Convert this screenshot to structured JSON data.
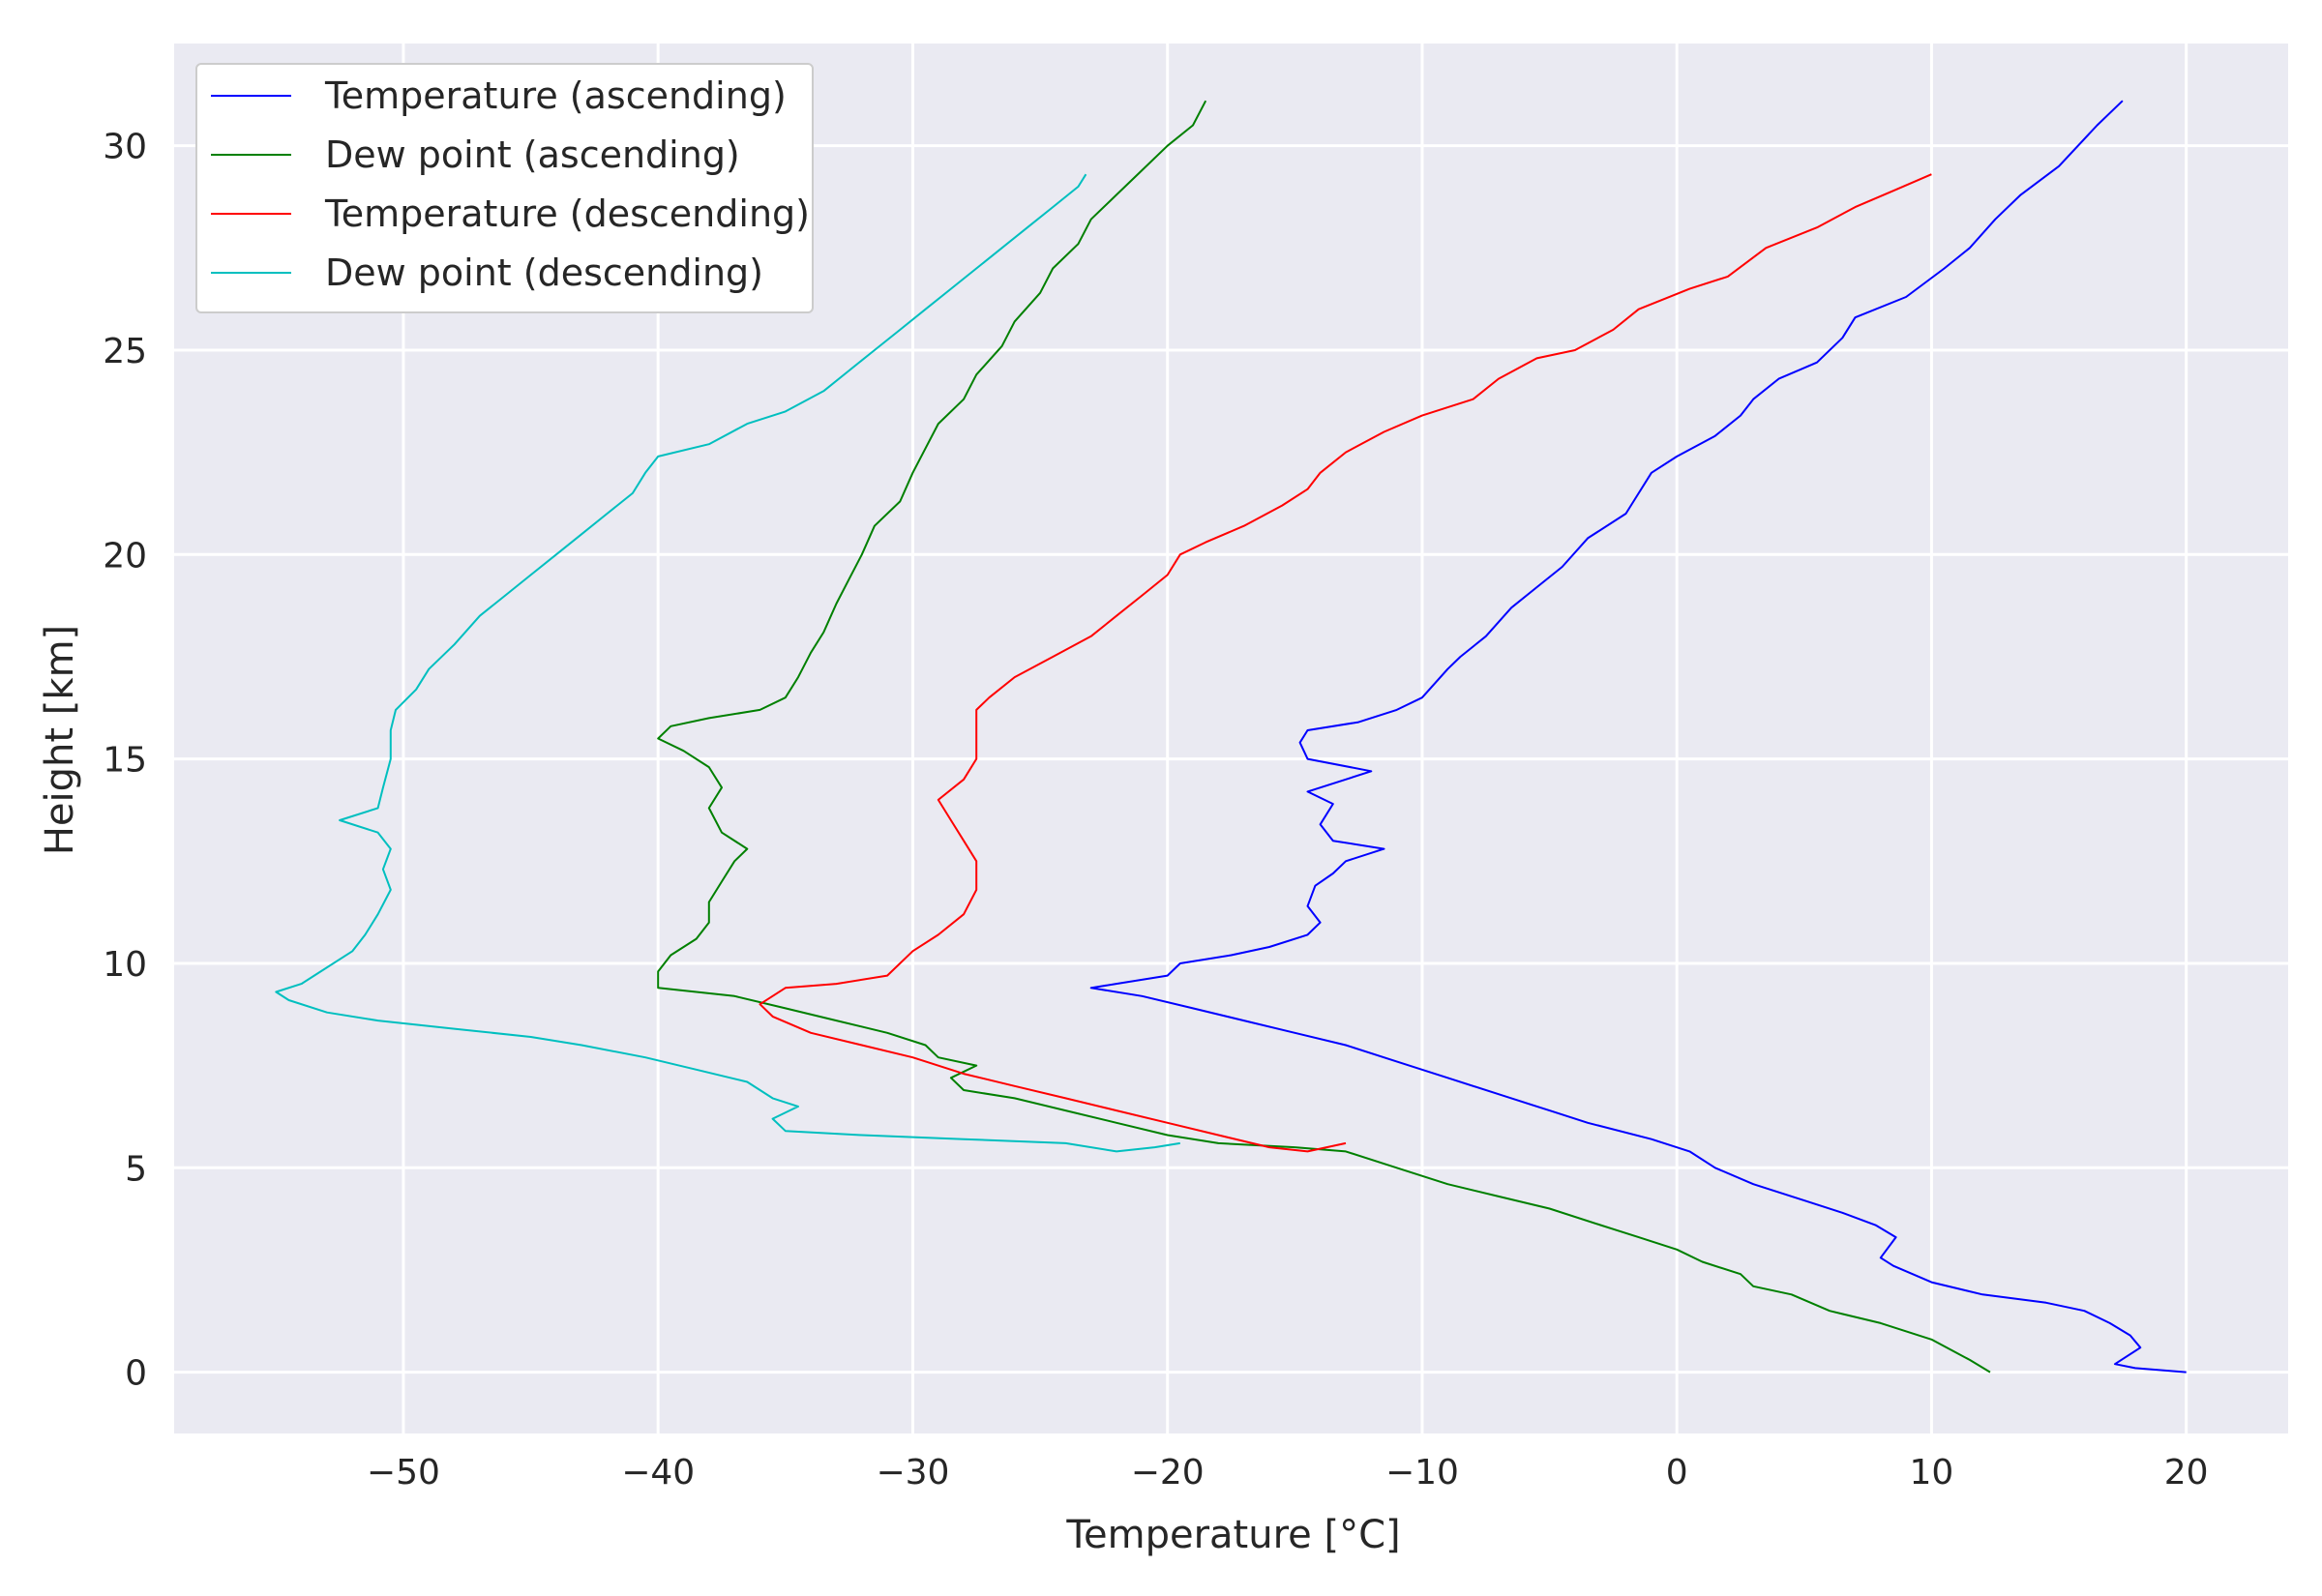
{
  "chart_data": {
    "type": "line",
    "xlabel": "Temperature [°C]",
    "ylabel": "Height [km]",
    "xlim": [
      -59,
      24
    ],
    "ylim": [
      -1.5,
      32.5
    ],
    "xticks": [
      -50,
      -40,
      -30,
      -20,
      -10,
      0,
      10,
      20
    ],
    "xtick_labels": [
      "−50",
      "−40",
      "−30",
      "−20",
      "−10",
      "0",
      "10",
      "20"
    ],
    "yticks": [
      0,
      5,
      10,
      15,
      20,
      25,
      30
    ],
    "ytick_labels": [
      "0",
      "5",
      "10",
      "15",
      "20",
      "25",
      "30"
    ],
    "grid": true,
    "legend_position": "upper-left",
    "background": "#eaeaf2",
    "series": [
      {
        "name": "Temperature (ascending)",
        "color": "#0000ff",
        "points": [
          [
            20.0,
            0.0
          ],
          [
            18.0,
            0.1
          ],
          [
            17.2,
            0.2
          ],
          [
            18.2,
            0.6
          ],
          [
            17.8,
            0.9
          ],
          [
            17.0,
            1.2
          ],
          [
            16.0,
            1.5
          ],
          [
            14.5,
            1.7
          ],
          [
            12.0,
            1.9
          ],
          [
            10.0,
            2.2
          ],
          [
            8.5,
            2.6
          ],
          [
            8.0,
            2.8
          ],
          [
            8.6,
            3.3
          ],
          [
            7.8,
            3.6
          ],
          [
            6.5,
            3.9
          ],
          [
            5.0,
            4.2
          ],
          [
            3.0,
            4.6
          ],
          [
            1.5,
            5.0
          ],
          [
            0.5,
            5.4
          ],
          [
            -1.0,
            5.7
          ],
          [
            -3.5,
            6.1
          ],
          [
            -5.0,
            6.4
          ],
          [
            -7.0,
            6.8
          ],
          [
            -9.0,
            7.2
          ],
          [
            -11.0,
            7.6
          ],
          [
            -13.0,
            8.0
          ],
          [
            -15.0,
            8.3
          ],
          [
            -17.0,
            8.6
          ],
          [
            -19.0,
            8.9
          ],
          [
            -21.0,
            9.2
          ],
          [
            -23.0,
            9.4
          ],
          [
            -20.0,
            9.7
          ],
          [
            -19.5,
            10.0
          ],
          [
            -17.5,
            10.2
          ],
          [
            -16.0,
            10.4
          ],
          [
            -14.5,
            10.7
          ],
          [
            -14.0,
            11.0
          ],
          [
            -14.5,
            11.4
          ],
          [
            -14.2,
            11.9
          ],
          [
            -13.5,
            12.2
          ],
          [
            -13.0,
            12.5
          ],
          [
            -11.5,
            12.8
          ],
          [
            -13.5,
            13.0
          ],
          [
            -14.0,
            13.4
          ],
          [
            -13.5,
            13.9
          ],
          [
            -14.5,
            14.2
          ],
          [
            -13.0,
            14.5
          ],
          [
            -12.0,
            14.7
          ],
          [
            -14.5,
            15.0
          ],
          [
            -14.8,
            15.4
          ],
          [
            -14.5,
            15.7
          ],
          [
            -12.5,
            15.9
          ],
          [
            -11.0,
            16.2
          ],
          [
            -10.0,
            16.5
          ],
          [
            -9.0,
            17.2
          ],
          [
            -8.5,
            17.5
          ],
          [
            -7.5,
            18.0
          ],
          [
            -6.5,
            18.7
          ],
          [
            -5.5,
            19.2
          ],
          [
            -4.5,
            19.7
          ],
          [
            -3.5,
            20.4
          ],
          [
            -2.0,
            21.0
          ],
          [
            -1.5,
            21.5
          ],
          [
            -1.0,
            22.0
          ],
          [
            0.0,
            22.4
          ],
          [
            1.5,
            22.9
          ],
          [
            2.5,
            23.4
          ],
          [
            3.0,
            23.8
          ],
          [
            4.0,
            24.3
          ],
          [
            5.5,
            24.7
          ],
          [
            6.5,
            25.3
          ],
          [
            7.0,
            25.8
          ],
          [
            9.0,
            26.3
          ],
          [
            10.5,
            27.0
          ],
          [
            11.5,
            27.5
          ],
          [
            12.5,
            28.2
          ],
          [
            13.5,
            28.8
          ],
          [
            15.0,
            29.5
          ],
          [
            16.5,
            30.5
          ],
          [
            17.5,
            31.1
          ]
        ]
      },
      {
        "name": "Dew point (ascending)",
        "color": "#008000",
        "points": [
          [
            12.3,
            0.0
          ],
          [
            11.5,
            0.3
          ],
          [
            10.0,
            0.8
          ],
          [
            8.0,
            1.2
          ],
          [
            6.0,
            1.5
          ],
          [
            4.5,
            1.9
          ],
          [
            3.0,
            2.1
          ],
          [
            2.5,
            2.4
          ],
          [
            1.0,
            2.7
          ],
          [
            0.0,
            3.0
          ],
          [
            -1.5,
            3.3
          ],
          [
            -3.0,
            3.6
          ],
          [
            -5.0,
            4.0
          ],
          [
            -7.0,
            4.3
          ],
          [
            -9.0,
            4.6
          ],
          [
            -11.0,
            5.0
          ],
          [
            -13.0,
            5.4
          ],
          [
            -15.0,
            5.5
          ],
          [
            -18.0,
            5.6
          ],
          [
            -20.0,
            5.8
          ],
          [
            -22.0,
            6.1
          ],
          [
            -24.0,
            6.4
          ],
          [
            -26.0,
            6.7
          ],
          [
            -28.0,
            6.9
          ],
          [
            -28.5,
            7.2
          ],
          [
            -27.5,
            7.5
          ],
          [
            -29.0,
            7.7
          ],
          [
            -29.5,
            8.0
          ],
          [
            -31.0,
            8.3
          ],
          [
            -33.0,
            8.6
          ],
          [
            -35.0,
            8.9
          ],
          [
            -37.0,
            9.2
          ],
          [
            -40.0,
            9.4
          ],
          [
            -40.0,
            9.8
          ],
          [
            -39.5,
            10.2
          ],
          [
            -38.5,
            10.6
          ],
          [
            -38.0,
            11.0
          ],
          [
            -38.0,
            11.5
          ],
          [
            -37.5,
            12.0
          ],
          [
            -37.0,
            12.5
          ],
          [
            -36.5,
            12.8
          ],
          [
            -37.5,
            13.2
          ],
          [
            -38.0,
            13.8
          ],
          [
            -37.5,
            14.3
          ],
          [
            -38.0,
            14.8
          ],
          [
            -39.0,
            15.2
          ],
          [
            -40.0,
            15.5
          ],
          [
            -39.5,
            15.8
          ],
          [
            -38.0,
            16.0
          ],
          [
            -36.0,
            16.2
          ],
          [
            -35.0,
            16.5
          ],
          [
            -34.5,
            17.0
          ],
          [
            -34.0,
            17.6
          ],
          [
            -33.5,
            18.1
          ],
          [
            -33.0,
            18.8
          ],
          [
            -32.5,
            19.4
          ],
          [
            -32.0,
            20.0
          ],
          [
            -31.5,
            20.7
          ],
          [
            -30.5,
            21.3
          ],
          [
            -30.0,
            22.0
          ],
          [
            -29.5,
            22.6
          ],
          [
            -29.0,
            23.2
          ],
          [
            -28.0,
            23.8
          ],
          [
            -27.5,
            24.4
          ],
          [
            -26.5,
            25.1
          ],
          [
            -26.0,
            25.7
          ],
          [
            -25.0,
            26.4
          ],
          [
            -24.5,
            27.0
          ],
          [
            -23.5,
            27.6
          ],
          [
            -23.0,
            28.2
          ],
          [
            -22.0,
            28.8
          ],
          [
            -21.0,
            29.4
          ],
          [
            -20.0,
            30.0
          ],
          [
            -19.0,
            30.5
          ],
          [
            -18.5,
            31.1
          ]
        ]
      },
      {
        "name": "Temperature (descending)",
        "color": "#ff0000",
        "points": [
          [
            -13.0,
            5.6
          ],
          [
            -14.5,
            5.4
          ],
          [
            -16.0,
            5.5
          ],
          [
            -18.0,
            5.8
          ],
          [
            -20.0,
            6.1
          ],
          [
            -22.0,
            6.4
          ],
          [
            -24.0,
            6.7
          ],
          [
            -26.0,
            7.0
          ],
          [
            -28.0,
            7.3
          ],
          [
            -30.0,
            7.7
          ],
          [
            -32.0,
            8.0
          ],
          [
            -34.0,
            8.3
          ],
          [
            -35.5,
            8.7
          ],
          [
            -36.0,
            9.0
          ],
          [
            -35.0,
            9.4
          ],
          [
            -33.0,
            9.5
          ],
          [
            -31.0,
            9.7
          ],
          [
            -30.0,
            10.3
          ],
          [
            -29.0,
            10.7
          ],
          [
            -28.0,
            11.2
          ],
          [
            -27.5,
            11.8
          ],
          [
            -27.5,
            12.5
          ],
          [
            -28.0,
            13.0
          ],
          [
            -28.5,
            13.5
          ],
          [
            -29.0,
            14.0
          ],
          [
            -28.0,
            14.5
          ],
          [
            -27.5,
            15.0
          ],
          [
            -27.5,
            15.5
          ],
          [
            -27.5,
            16.2
          ],
          [
            -27.0,
            16.5
          ],
          [
            -26.0,
            17.0
          ],
          [
            -24.5,
            17.5
          ],
          [
            -23.0,
            18.0
          ],
          [
            -22.0,
            18.5
          ],
          [
            -21.0,
            19.0
          ],
          [
            -20.0,
            19.5
          ],
          [
            -19.5,
            20.0
          ],
          [
            -18.5,
            20.3
          ],
          [
            -17.0,
            20.7
          ],
          [
            -15.5,
            21.2
          ],
          [
            -14.5,
            21.6
          ],
          [
            -14.0,
            22.0
          ],
          [
            -13.0,
            22.5
          ],
          [
            -11.5,
            23.0
          ],
          [
            -10.0,
            23.4
          ],
          [
            -8.0,
            23.8
          ],
          [
            -7.0,
            24.3
          ],
          [
            -5.5,
            24.8
          ],
          [
            -4.0,
            25.0
          ],
          [
            -2.5,
            25.5
          ],
          [
            -1.5,
            26.0
          ],
          [
            0.5,
            26.5
          ],
          [
            2.0,
            26.8
          ],
          [
            3.5,
            27.5
          ],
          [
            5.5,
            28.0
          ],
          [
            7.0,
            28.5
          ],
          [
            8.5,
            28.9
          ],
          [
            10.0,
            29.3
          ]
        ]
      },
      {
        "name": "Dew point (descending)",
        "color": "#00bfbf",
        "points": [
          [
            -19.5,
            5.6
          ],
          [
            -20.5,
            5.5
          ],
          [
            -22.0,
            5.4
          ],
          [
            -24.0,
            5.6
          ],
          [
            -28.0,
            5.7
          ],
          [
            -32.0,
            5.8
          ],
          [
            -35.0,
            5.9
          ],
          [
            -35.5,
            6.2
          ],
          [
            -34.5,
            6.5
          ],
          [
            -35.5,
            6.7
          ],
          [
            -36.5,
            7.1
          ],
          [
            -38.5,
            7.4
          ],
          [
            -40.5,
            7.7
          ],
          [
            -43.0,
            8.0
          ],
          [
            -45.0,
            8.2
          ],
          [
            -48.0,
            8.4
          ],
          [
            -51.0,
            8.6
          ],
          [
            -53.0,
            8.8
          ],
          [
            -54.5,
            9.1
          ],
          [
            -55.0,
            9.3
          ],
          [
            -54.0,
            9.5
          ],
          [
            -53.5,
            9.7
          ],
          [
            -52.0,
            10.3
          ],
          [
            -51.5,
            10.7
          ],
          [
            -51.0,
            11.2
          ],
          [
            -50.5,
            11.8
          ],
          [
            -50.8,
            12.3
          ],
          [
            -50.5,
            12.8
          ],
          [
            -51.0,
            13.2
          ],
          [
            -52.5,
            13.5
          ],
          [
            -51.0,
            13.8
          ],
          [
            -50.8,
            14.3
          ],
          [
            -50.5,
            15.0
          ],
          [
            -50.5,
            15.7
          ],
          [
            -50.3,
            16.2
          ],
          [
            -49.5,
            16.7
          ],
          [
            -49.0,
            17.2
          ],
          [
            -48.0,
            17.8
          ],
          [
            -47.0,
            18.5
          ],
          [
            -46.0,
            19.0
          ],
          [
            -45.0,
            19.5
          ],
          [
            -44.0,
            20.0
          ],
          [
            -43.0,
            20.5
          ],
          [
            -42.0,
            21.0
          ],
          [
            -41.0,
            21.5
          ],
          [
            -40.5,
            22.0
          ],
          [
            -40.0,
            22.4
          ],
          [
            -38.0,
            22.7
          ],
          [
            -36.5,
            23.2
          ],
          [
            -35.0,
            23.5
          ],
          [
            -33.5,
            24.0
          ],
          [
            -32.5,
            24.5
          ],
          [
            -31.5,
            25.0
          ],
          [
            -30.5,
            25.5
          ],
          [
            -29.5,
            26.0
          ],
          [
            -28.5,
            26.5
          ],
          [
            -27.5,
            27.0
          ],
          [
            -26.5,
            27.5
          ],
          [
            -25.5,
            28.0
          ],
          [
            -24.5,
            28.5
          ],
          [
            -23.5,
            29.0
          ],
          [
            -23.2,
            29.3
          ]
        ]
      }
    ]
  }
}
